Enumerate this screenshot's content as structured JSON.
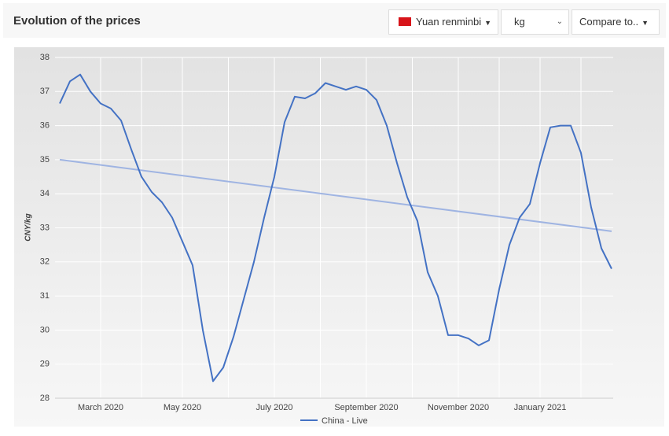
{
  "header": {
    "title": "Evolution of the prices",
    "currency": "Yuan renminbi",
    "unit": "kg",
    "compare": "Compare to.."
  },
  "chart_data": {
    "type": "line",
    "ylabel": "CNY/kg",
    "categories": [
      null,
      null,
      null,
      null,
      "March 2020",
      null,
      null,
      null,
      null,
      null,
      null,
      null,
      "May 2020",
      null,
      null,
      null,
      null,
      null,
      null,
      null,
      null,
      "July 2020",
      null,
      null,
      null,
      null,
      null,
      null,
      null,
      null,
      "September 2020",
      null,
      null,
      null,
      null,
      null,
      null,
      null,
      null,
      "November 2020",
      null,
      null,
      null,
      null,
      null,
      null,
      null,
      "January 2021",
      null,
      null,
      null,
      null,
      null,
      null,
      null
    ],
    "series": [
      {
        "name": "China - Live",
        "color": "#4472c4",
        "values": [
          36.65,
          37.3,
          37.5,
          37.0,
          36.65,
          36.5,
          36.15,
          35.3,
          34.5,
          34.05,
          33.75,
          33.3,
          32.6,
          31.9,
          30.0,
          28.5,
          28.9,
          29.8,
          30.9,
          32.0,
          33.3,
          34.5,
          36.1,
          36.85,
          36.8,
          36.95,
          37.25,
          37.15,
          37.05,
          37.15,
          37.05,
          36.75,
          36.0,
          34.9,
          33.9,
          33.2,
          31.7,
          31.0,
          29.85,
          29.85,
          29.75,
          29.55,
          29.7,
          31.2,
          32.5,
          33.3,
          33.7,
          34.9,
          35.95,
          36.0,
          36.0,
          35.2,
          33.6,
          32.4,
          31.8
        ]
      }
    ],
    "trend": {
      "color": "#9fb4e2",
      "values": [
        35.0,
        32.9
      ]
    },
    "ylim": [
      28,
      38
    ],
    "yticks": [
      28,
      29,
      30,
      31,
      32,
      33,
      34,
      35,
      36,
      37,
      38
    ],
    "grid": true,
    "legend": "bottom"
  }
}
